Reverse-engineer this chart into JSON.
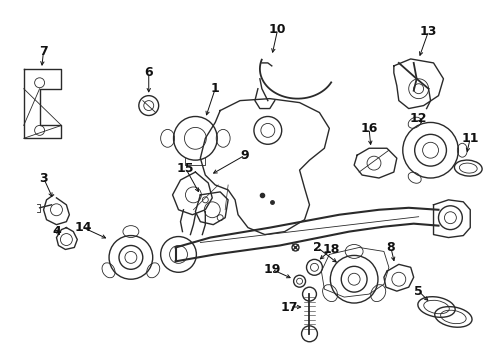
{
  "background_color": "#ffffff",
  "line_color": "#2a2a2a",
  "label_color": "#111111",
  "figsize": [
    4.9,
    3.6
  ],
  "dpi": 100
}
